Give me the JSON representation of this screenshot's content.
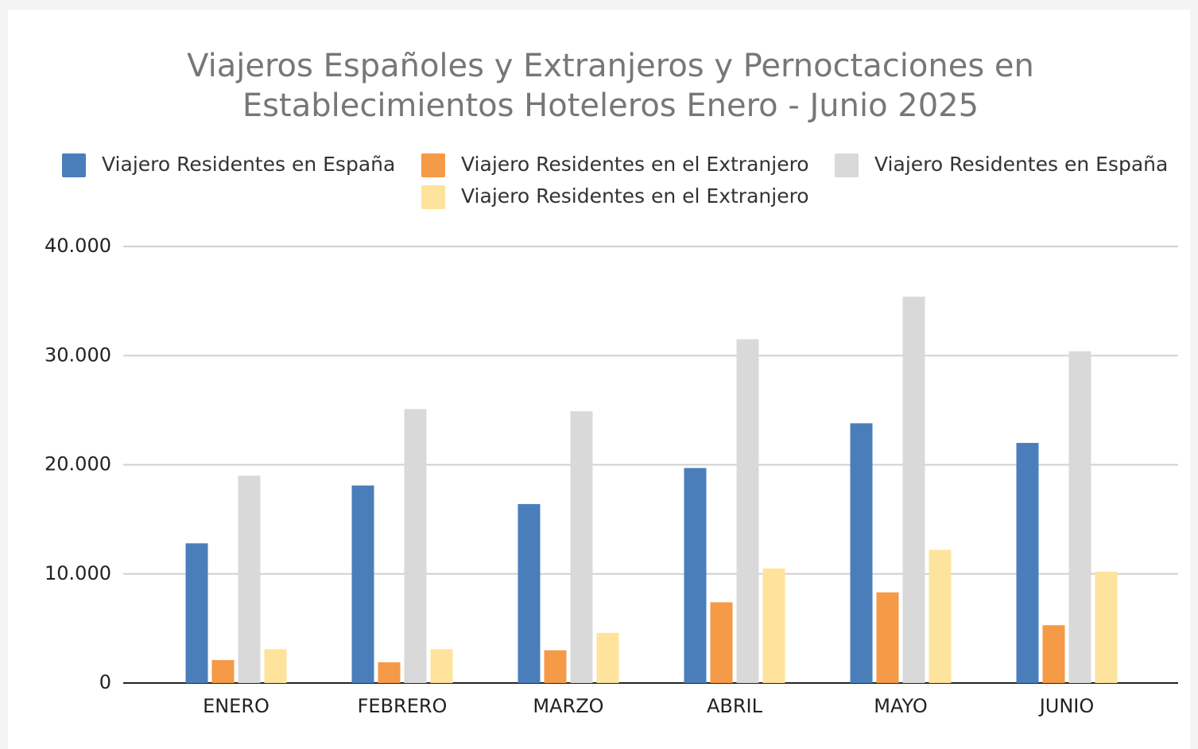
{
  "chart_data": {
    "type": "bar",
    "title": "Viajeros Españoles y Extranjeros y Pernoctaciones en Establecimientos Hoteleros Enero - Junio 2025",
    "categories": [
      "ENERO",
      "FEBRERO",
      "MARZO",
      "ABRIL",
      "MAYO",
      "JUNIO"
    ],
    "series": [
      {
        "name": "Viajero Residentes en España",
        "color": "#4a7ebb",
        "values": [
          12800,
          18100,
          16400,
          19700,
          23800,
          22000
        ]
      },
      {
        "name": "Viajero Residentes en el Extranjero",
        "color": "#f59a47",
        "values": [
          2100,
          1900,
          3000,
          7400,
          8300,
          5300
        ]
      },
      {
        "name": "Viajero Residentes en España",
        "color": "#d9d9d9",
        "values": [
          19000,
          25100,
          24900,
          31500,
          35400,
          30400
        ]
      },
      {
        "name": "Viajero Residentes en el Extranjero",
        "color": "#fee39c",
        "values": [
          3100,
          3100,
          4600,
          10500,
          12200,
          10200
        ]
      }
    ],
    "ylim": [
      0,
      40000
    ],
    "yticks": [
      0,
      {
        "value": 10000,
        "label": "10.000"
      },
      {
        "value": 20000,
        "label": "20.000"
      },
      {
        "value": 30000,
        "label": "30.000"
      },
      {
        "value": 40000,
        "label": "40.000"
      }
    ],
    "grid": true,
    "legend": "top"
  }
}
